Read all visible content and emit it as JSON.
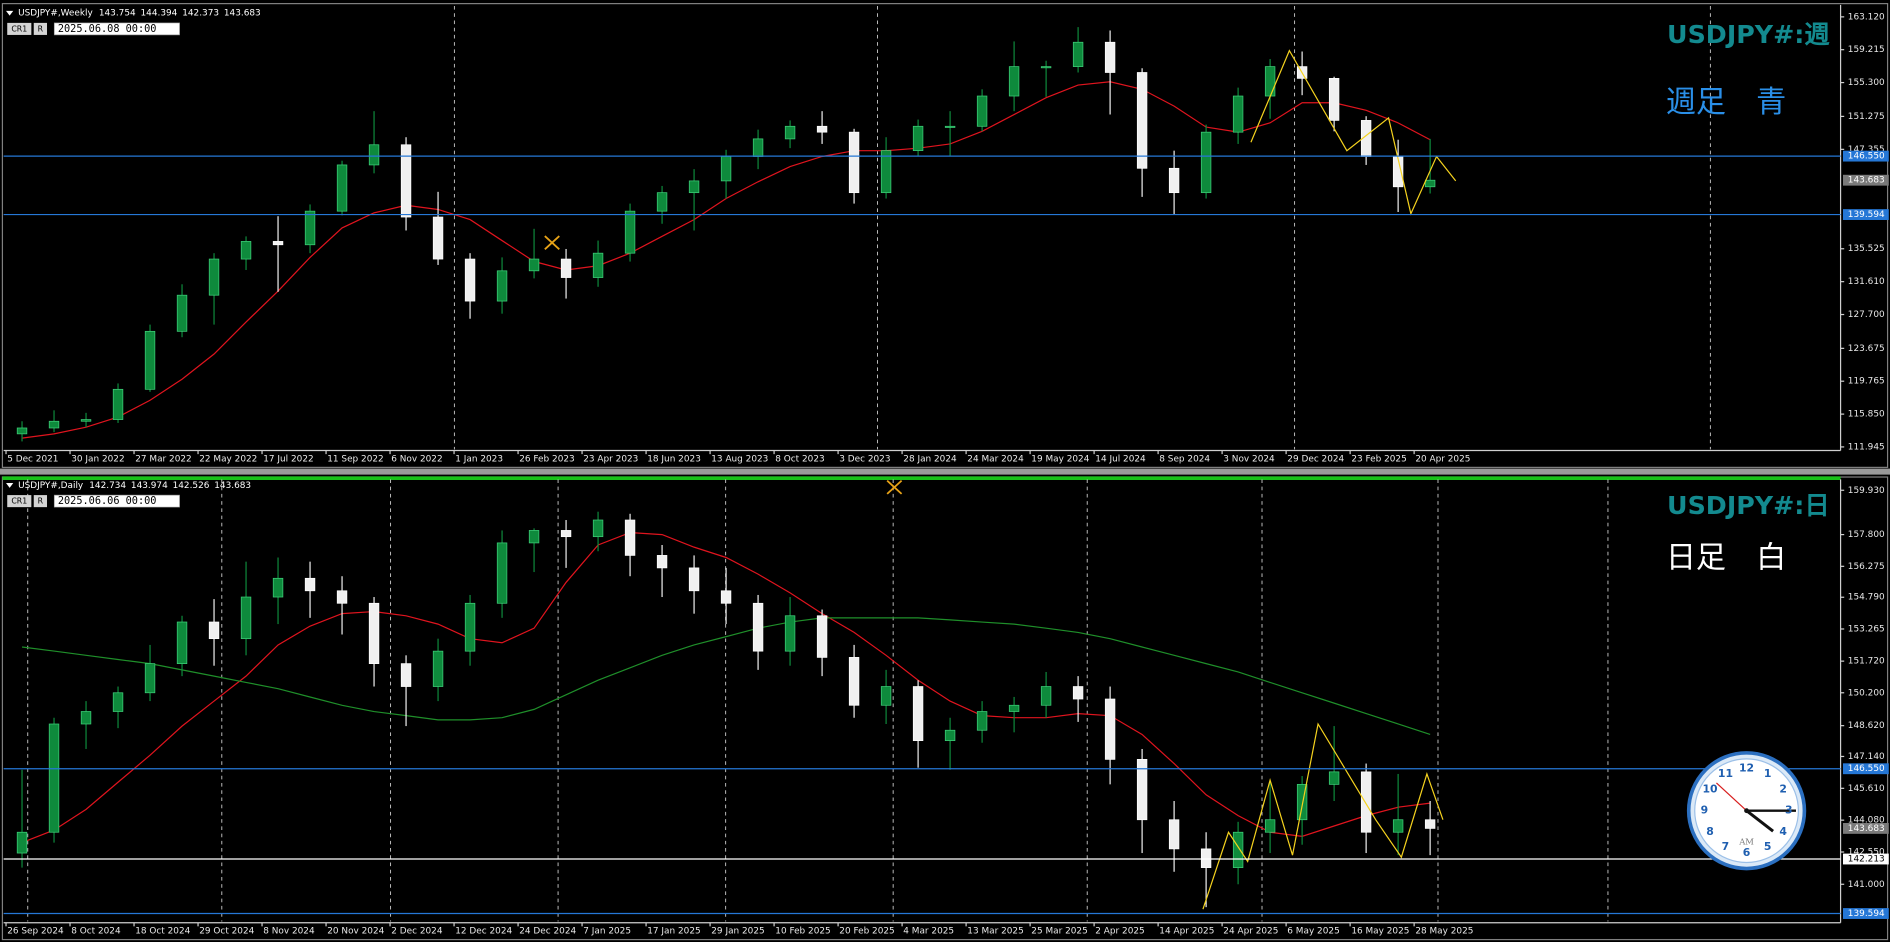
{
  "chart_data": [
    {
      "type": "candlestick",
      "title": "USDJPY#:週",
      "subtitle": "週足　青",
      "title_color": "#138a8f",
      "subtitle_color": "#2a8fe8",
      "header": "USDJPY#,Weekly",
      "header_values": [
        143.754,
        144.394,
        142.373,
        143.683
      ],
      "buttons": [
        "CR1",
        "R"
      ],
      "date_box": "2025.06.08 00:00",
      "x_labels": [
        "5 Dec 2021",
        "30 Jan 2022",
        "27 Mar 2022",
        "22 May 2022",
        "17 Jul 2022",
        "11 Sep 2022",
        "6 Nov 2022",
        "1 Jan 2023",
        "26 Feb 2023",
        "23 Apr 2023",
        "18 Jun 2023",
        "13 Aug 2023",
        "8 Oct 2023",
        "3 Dec 2023",
        "28 Jan 2024",
        "24 Mar 2024",
        "19 May 2024",
        "14 Jul 2024",
        "8 Sep 2024",
        "3 Nov 2024",
        "29 Dec 2024",
        "23 Feb 2025",
        "20 Apr 2025"
      ],
      "ylim": [
        111.66,
        164.41
      ],
      "yticks": [
        {
          "value": 163.12,
          "label": "163.120"
        },
        159.215,
        {
          "value": 155.3,
          "label": "155.300"
        },
        151.275,
        147.355,
        135.525,
        {
          "value": 131.61,
          "label": "131.610"
        },
        {
          "value": 127.7,
          "label": "127.700"
        },
        123.675,
        119.765,
        {
          "value": 115.85,
          "label": "115.850"
        },
        111.945
      ],
      "up_color": "#0e8a3c",
      "down_color": "#f0f0f0",
      "candles": [
        [
          113.5,
          115.0,
          112.6,
          114.2
        ],
        [
          114.2,
          116.3,
          113.7,
          115.0
        ],
        [
          115.0,
          116.0,
          114.3,
          115.2
        ],
        [
          115.2,
          119.5,
          114.8,
          118.8
        ],
        [
          118.8,
          126.5,
          118.5,
          125.7
        ],
        [
          125.7,
          131.3,
          125.0,
          130.0
        ],
        [
          130.0,
          135.0,
          126.5,
          134.3
        ],
        [
          134.3,
          137.0,
          133.0,
          136.4
        ],
        [
          136.4,
          139.4,
          130.4,
          136.0
        ],
        [
          136.0,
          140.8,
          135.0,
          140.0
        ],
        [
          140.0,
          146.0,
          139.5,
          145.5
        ],
        [
          145.5,
          151.9,
          144.5,
          147.9
        ],
        [
          147.9,
          148.8,
          137.7,
          139.3
        ],
        [
          139.3,
          142.3,
          133.6,
          134.3
        ],
        [
          134.3,
          135.0,
          127.2,
          129.3
        ],
        [
          129.3,
          134.5,
          127.8,
          132.9
        ],
        [
          132.9,
          137.9,
          132.0,
          134.3
        ],
        [
          134.3,
          135.5,
          129.6,
          132.1
        ],
        [
          132.1,
          136.5,
          131.0,
          135.0
        ],
        [
          135.0,
          140.9,
          134.0,
          140.0
        ],
        [
          140.0,
          143.0,
          138.5,
          142.2
        ],
        [
          142.2,
          145.0,
          137.7,
          143.6
        ],
        [
          143.6,
          147.3,
          141.5,
          146.5
        ],
        [
          146.5,
          149.7,
          145.0,
          148.6
        ],
        [
          148.6,
          150.8,
          147.5,
          150.1
        ],
        [
          150.1,
          151.9,
          148.0,
          149.4
        ],
        [
          149.4,
          149.8,
          140.9,
          142.2
        ],
        [
          142.2,
          148.8,
          141.5,
          147.2
        ],
        [
          147.2,
          150.9,
          146.5,
          150.1
        ],
        [
          150.1,
          151.9,
          146.5,
          150.1
        ],
        [
          150.1,
          154.5,
          149.5,
          153.7
        ],
        [
          153.7,
          160.2,
          151.9,
          157.2
        ],
        [
          157.2,
          157.9,
          153.6,
          157.2
        ],
        [
          157.2,
          161.9,
          156.5,
          160.1
        ],
        [
          160.1,
          161.5,
          151.5,
          156.5
        ],
        [
          156.5,
          157.0,
          141.7,
          145.1
        ],
        [
          145.1,
          147.2,
          139.6,
          142.2
        ],
        [
          142.2,
          150.3,
          141.5,
          149.4
        ],
        [
          149.4,
          154.7,
          148.0,
          153.7
        ],
        [
          153.7,
          158.1,
          151.0,
          157.2
        ],
        [
          157.2,
          159.0,
          153.8,
          155.8
        ],
        [
          155.8,
          156.0,
          149.5,
          150.8
        ],
        [
          150.8,
          151.3,
          145.5,
          146.5
        ],
        [
          146.5,
          148.5,
          139.9,
          142.9
        ],
        [
          142.9,
          148.6,
          142.1,
          143.683
        ]
      ],
      "ma": [
        {
          "color": "#e0141e",
          "values": [
            113.0,
            113.5,
            114.3,
            115.5,
            117.5,
            120.0,
            123.0,
            126.8,
            130.5,
            134.5,
            138.0,
            139.8,
            140.7,
            140.2,
            139.0,
            136.5,
            134.0,
            133.0,
            133.5,
            135.0,
            137.0,
            139.0,
            141.5,
            143.5,
            145.3,
            146.5,
            147.2,
            147.2,
            147.5,
            148.0,
            149.5,
            151.5,
            153.5,
            155.0,
            155.4,
            154.5,
            152.5,
            150.0,
            149.4,
            150.5,
            152.9,
            152.9,
            152.0,
            150.5,
            148.5
          ]
        }
      ],
      "zigzag": {
        "color": "#f5d21e",
        "x": [
          38.4,
          39.6,
          41.4,
          42.7,
          43.4,
          44.2,
          44.8
        ],
        "y": [
          148.2,
          159.1,
          147.2,
          151.1,
          139.7,
          146.5,
          143.6
        ]
      },
      "levels": [
        {
          "value": 146.55,
          "label": "146.550",
          "color": "#2577d6"
        },
        {
          "value": 139.594,
          "label": "139.594",
          "color": "#2577d6"
        }
      ],
      "last": 143.683
    },
    {
      "type": "candlestick",
      "title": "USDJPY#:日",
      "subtitle": "日足　白",
      "title_color": "#138a8f",
      "subtitle_color": "#ffffff",
      "header": "USDJPY#,Daily",
      "header_values": [
        142.734,
        143.974,
        142.526,
        143.683
      ],
      "buttons": [
        "CR1",
        "R"
      ],
      "date_box": "2025.06.06 00:00",
      "x_labels": [
        "26 Sep 2024",
        "8 Oct 2024",
        "18 Oct 2024",
        "29 Oct 2024",
        "8 Nov 2024",
        "20 Nov 2024",
        "2 Dec 2024",
        "12 Dec 2024",
        "24 Dec 2024",
        "7 Jan 2025",
        "17 Jan 2025",
        "29 Jan 2025",
        "10 Feb 2025",
        "20 Feb 2025",
        "4 Mar 2025",
        "13 Mar 2025",
        "25 Mar 2025",
        "2 Apr 2025",
        "14 Apr 2025",
        "24 Apr 2025",
        "6 May 2025",
        "16 May 2025",
        "28 May 2025"
      ],
      "ylim": [
        139.21,
        160.45
      ],
      "yticks": [
        {
          "value": 159.93,
          "label": "159.930"
        },
        {
          "value": 157.8,
          "label": "157.800"
        },
        156.275,
        {
          "value": 154.79,
          "label": "154.790"
        },
        153.265,
        {
          "value": 151.72,
          "label": "151.720"
        },
        {
          "value": 150.2,
          "label": "150.200"
        },
        {
          "value": 148.62,
          "label": "148.620"
        },
        {
          "value": 147.14,
          "label": "147.140"
        },
        {
          "value": 145.61,
          "label": "145.610"
        },
        {
          "value": 144.08,
          "label": "144.080"
        },
        {
          "value": 142.55,
          "label": "142.550"
        },
        {
          "value": 141,
          "label": "141.000"
        }
      ],
      "up_color": "#0e8a3c",
      "down_color": "#f0f0f0",
      "candles": [
        [
          142.5,
          146.5,
          141.8,
          143.5
        ],
        [
          143.5,
          149.0,
          143.0,
          148.7
        ],
        [
          148.7,
          149.8,
          147.5,
          149.3
        ],
        [
          149.3,
          150.5,
          148.5,
          150.2
        ],
        [
          150.2,
          152.5,
          149.8,
          151.6
        ],
        [
          151.6,
          153.9,
          151.0,
          153.6
        ],
        [
          153.6,
          154.7,
          151.5,
          152.8
        ],
        [
          152.8,
          156.5,
          152.0,
          154.8
        ],
        [
          154.8,
          156.7,
          153.5,
          155.7
        ],
        [
          155.7,
          156.5,
          153.8,
          155.1
        ],
        [
          155.1,
          155.8,
          153.0,
          154.5
        ],
        [
          154.5,
          154.8,
          150.5,
          151.6
        ],
        [
          151.6,
          152.0,
          148.6,
          150.5
        ],
        [
          150.5,
          152.8,
          149.8,
          152.2
        ],
        [
          152.2,
          154.9,
          151.5,
          154.5
        ],
        [
          154.5,
          158.0,
          153.8,
          157.4
        ],
        [
          157.4,
          158.1,
          156.0,
          158.0
        ],
        [
          158.0,
          158.5,
          156.2,
          157.7
        ],
        [
          157.7,
          158.9,
          157.0,
          158.5
        ],
        [
          158.5,
          158.8,
          155.8,
          156.8
        ],
        [
          156.8,
          157.3,
          154.8,
          156.2
        ],
        [
          156.2,
          156.8,
          154.0,
          155.1
        ],
        [
          155.1,
          156.2,
          153.5,
          154.5
        ],
        [
          154.5,
          154.9,
          151.3,
          152.2
        ],
        [
          152.2,
          154.8,
          151.5,
          153.9
        ],
        [
          153.9,
          154.2,
          151.0,
          151.9
        ],
        [
          151.9,
          152.5,
          149.0,
          149.6
        ],
        [
          149.6,
          151.3,
          148.7,
          150.5
        ],
        [
          150.5,
          150.8,
          146.6,
          147.9
        ],
        [
          147.9,
          149.0,
          146.5,
          148.4
        ],
        [
          148.4,
          149.8,
          147.8,
          149.3
        ],
        [
          149.3,
          150.0,
          148.3,
          149.6
        ],
        [
          149.6,
          151.2,
          149.0,
          150.5
        ],
        [
          150.5,
          151.0,
          148.8,
          149.9
        ],
        [
          149.9,
          150.5,
          145.8,
          147.0
        ],
        [
          147.0,
          147.5,
          142.5,
          144.1
        ],
        [
          144.1,
          145.0,
          141.6,
          142.7
        ],
        [
          142.7,
          143.5,
          139.9,
          141.8
        ],
        [
          141.8,
          144.0,
          141.0,
          143.5
        ],
        [
          143.5,
          145.9,
          142.5,
          144.1
        ],
        [
          144.1,
          146.2,
          142.9,
          145.8
        ],
        [
          145.8,
          148.6,
          145.0,
          146.4
        ],
        [
          146.4,
          146.8,
          142.5,
          143.5
        ],
        [
          143.5,
          146.3,
          142.4,
          144.1
        ],
        [
          144.1,
          145.0,
          142.4,
          143.683
        ]
      ],
      "ma": [
        {
          "color": "#e0141e",
          "values": [
            143.0,
            143.6,
            144.6,
            145.9,
            147.2,
            148.6,
            149.8,
            151.0,
            152.5,
            153.4,
            154.0,
            154.1,
            153.9,
            153.5,
            152.8,
            152.6,
            153.3,
            155.5,
            157.3,
            157.9,
            157.8,
            157.2,
            156.7,
            155.9,
            155.0,
            154.0,
            153.1,
            152.0,
            150.8,
            149.8,
            149.1,
            149.0,
            149.0,
            149.2,
            149.1,
            148.2,
            146.8,
            145.3,
            144.3,
            143.5,
            143.3,
            143.8,
            144.3,
            144.7,
            144.9
          ]
        },
        {
          "color": "#1f8f2a",
          "values": [
            152.4,
            152.2,
            152.0,
            151.8,
            151.6,
            151.3,
            151.0,
            150.7,
            150.4,
            150.0,
            149.6,
            149.3,
            149.1,
            148.9,
            148.9,
            149.0,
            149.4,
            150.1,
            150.8,
            151.4,
            152.0,
            152.5,
            152.9,
            153.3,
            153.6,
            153.8,
            153.8,
            153.8,
            153.8,
            153.7,
            153.6,
            153.5,
            153.3,
            153.1,
            152.8,
            152.4,
            152.0,
            151.6,
            151.2,
            150.7,
            150.2,
            149.7,
            149.2,
            148.7,
            148.2
          ]
        }
      ],
      "zigzag": {
        "color": "#f5d21e",
        "x": [
          36.9,
          37.7,
          38.3,
          39.0,
          39.7,
          40.5,
          42.3,
          43.1,
          43.9,
          44.4
        ],
        "y": [
          139.8,
          143.5,
          142.1,
          146.0,
          142.4,
          148.7,
          144.1,
          142.3,
          146.3,
          144.1
        ]
      },
      "levels": [
        {
          "value": 146.55,
          "label": "146.550",
          "color": "#2577d6"
        },
        {
          "value": 142.213,
          "label": "142.213",
          "color": "#ffffff"
        },
        {
          "value": 139.594,
          "label": "139.594",
          "color": "#2577d6"
        }
      ],
      "last": 143.683
    }
  ],
  "clock": {
    "numbers": [
      1,
      2,
      3,
      4,
      5,
      6,
      7,
      8,
      9,
      10,
      11,
      12
    ],
    "label": "AM"
  }
}
